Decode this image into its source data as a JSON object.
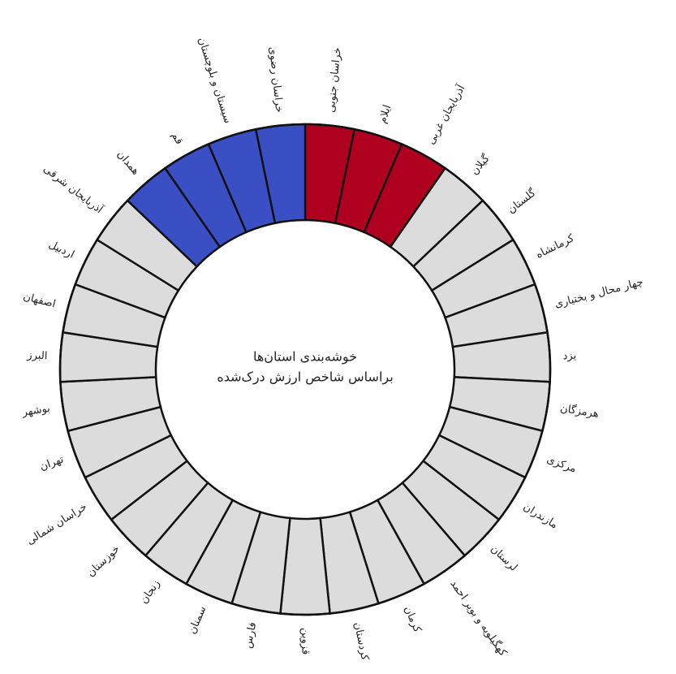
{
  "chart_data": {
    "type": "donut",
    "title": [
      "خوشه‌بندی استان‌ها",
      "براساس شاخص ارزش درک‌شده"
    ],
    "categories": [
      "خراسان جنوبی",
      "ایلام",
      "آذربایجان غربی",
      "گیلان",
      "گلستان",
      "کرمانشاه",
      "چهار محال و بختیاری",
      "یزد",
      "هرمزگان",
      "مرکزی",
      "مازندران",
      "لرستان",
      "کهگیلویه و بویر احمد",
      "کرمان",
      "کردستان",
      "قزوین",
      "فارس",
      "سمنان",
      "زنجان",
      "خوزستان",
      "خراسان شمالی",
      "تهران",
      "بوشهر",
      "البرز",
      "اصفهان",
      "اردبیل",
      "آذربایجان شرقی",
      "همدان",
      "قم",
      "سیستان و بلوچستان",
      "خراسان رضوی"
    ],
    "values": [
      1,
      1,
      1,
      1,
      1,
      1,
      1,
      1,
      1,
      1,
      1,
      1,
      1,
      1,
      1,
      1,
      1,
      1,
      1,
      1,
      1,
      1,
      1,
      1,
      1,
      1,
      1,
      1,
      1,
      1,
      1
    ],
    "colors": [
      "#b00020",
      "#b00020",
      "#b00020",
      "#dcdcdc",
      "#dcdcdc",
      "#dcdcdc",
      "#dcdcdc",
      "#dcdcdc",
      "#dcdcdc",
      "#dcdcdc",
      "#dcdcdc",
      "#dcdcdc",
      "#dcdcdc",
      "#dcdcdc",
      "#dcdcdc",
      "#dcdcdc",
      "#dcdcdc",
      "#dcdcdc",
      "#dcdcdc",
      "#dcdcdc",
      "#dcdcdc",
      "#dcdcdc",
      "#dcdcdc",
      "#dcdcdc",
      "#dcdcdc",
      "#dcdcdc",
      "#dcdcdc",
      "#3a4fc4",
      "#3a4fc4",
      "#3a4fc4",
      "#3a4fc4"
    ]
  }
}
